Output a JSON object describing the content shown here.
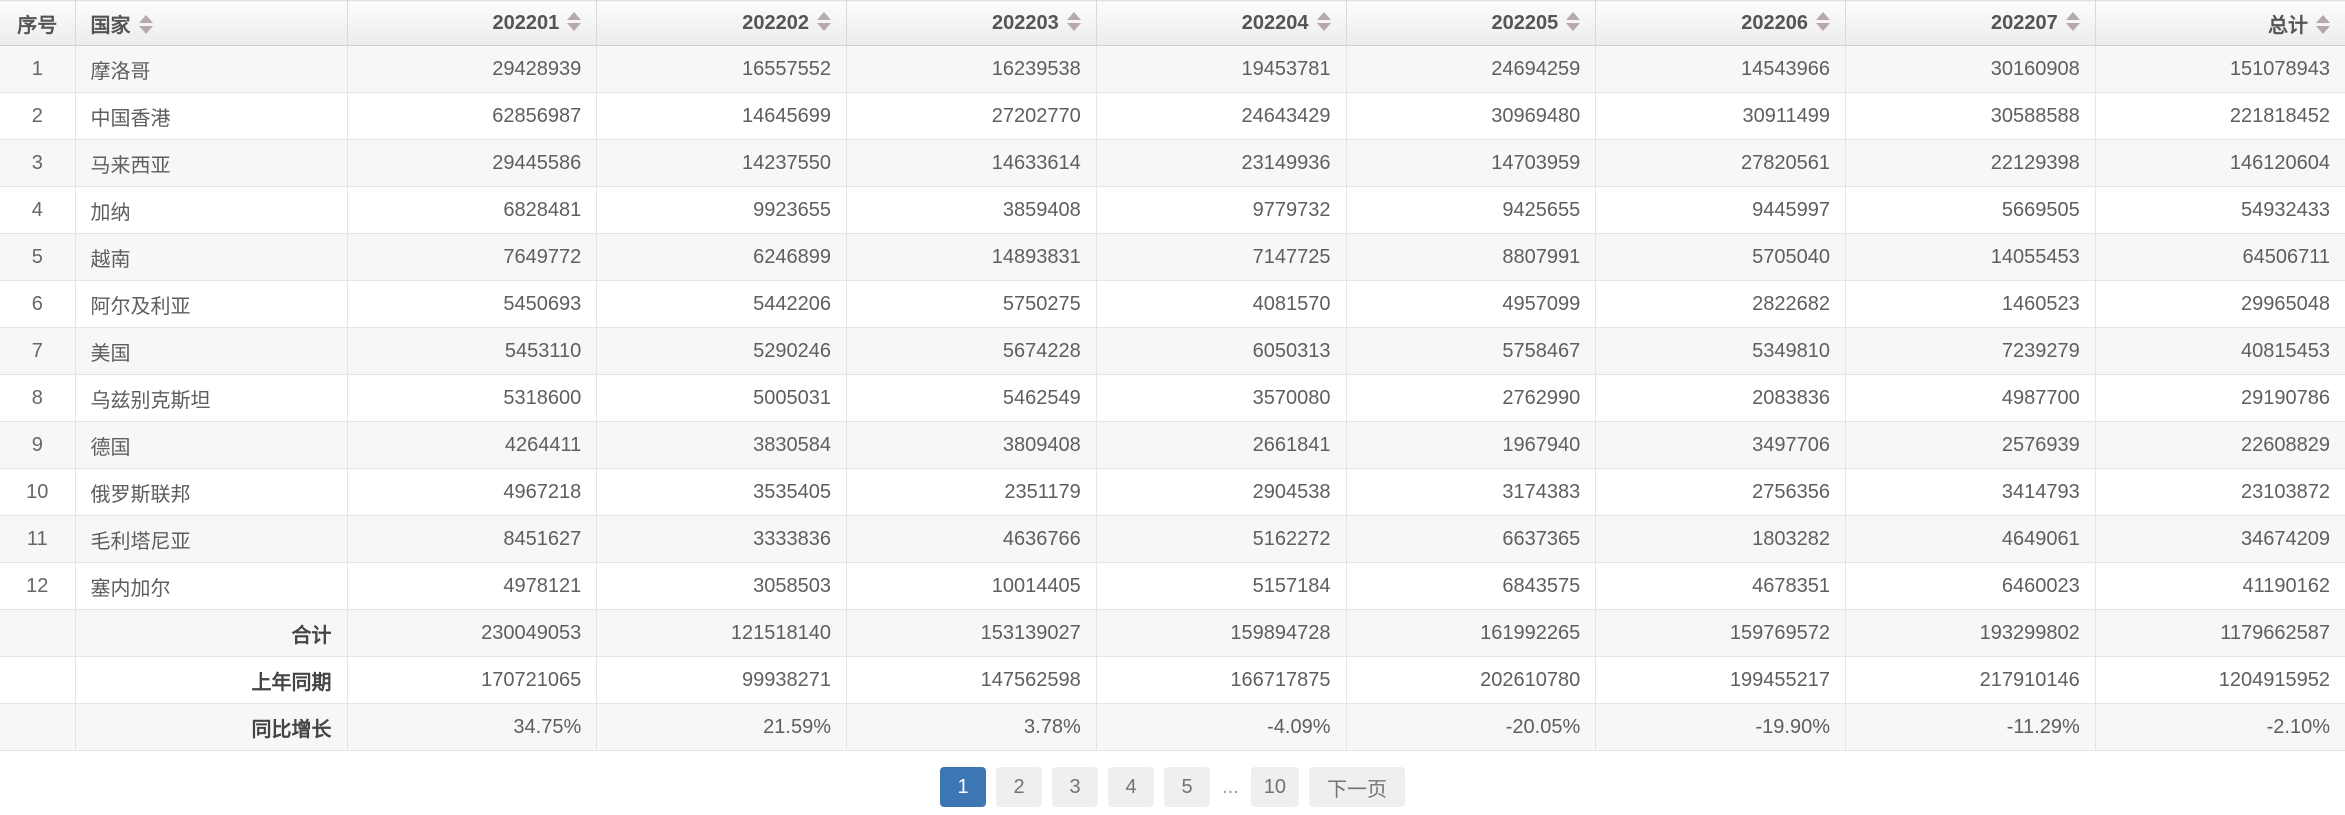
{
  "table": {
    "columns": [
      {
        "key": "index",
        "label": "序号",
        "sortable": false
      },
      {
        "key": "country",
        "label": "国家",
        "sortable": true
      },
      {
        "key": "202201",
        "label": "202201",
        "sortable": true
      },
      {
        "key": "202202",
        "label": "202202",
        "sortable": true
      },
      {
        "key": "202203",
        "label": "202203",
        "sortable": true
      },
      {
        "key": "202204",
        "label": "202204",
        "sortable": true
      },
      {
        "key": "202205",
        "label": "202205",
        "sortable": true
      },
      {
        "key": "202206",
        "label": "202206",
        "sortable": true
      },
      {
        "key": "202207",
        "label": "202207",
        "sortable": true
      },
      {
        "key": "total",
        "label": "总计",
        "sortable": true
      }
    ],
    "rows": [
      {
        "index": "1",
        "country": "摩洛哥",
        "values": [
          "29428939",
          "16557552",
          "16239538",
          "19453781",
          "24694259",
          "14543966",
          "30160908",
          "151078943"
        ]
      },
      {
        "index": "2",
        "country": "中国香港",
        "values": [
          "62856987",
          "14645699",
          "27202770",
          "24643429",
          "30969480",
          "30911499",
          "30588588",
          "221818452"
        ]
      },
      {
        "index": "3",
        "country": "马来西亚",
        "values": [
          "29445586",
          "14237550",
          "14633614",
          "23149936",
          "14703959",
          "27820561",
          "22129398",
          "146120604"
        ]
      },
      {
        "index": "4",
        "country": "加纳",
        "values": [
          "6828481",
          "9923655",
          "3859408",
          "9779732",
          "9425655",
          "9445997",
          "5669505",
          "54932433"
        ]
      },
      {
        "index": "5",
        "country": "越南",
        "values": [
          "7649772",
          "6246899",
          "14893831",
          "7147725",
          "8807991",
          "5705040",
          "14055453",
          "64506711"
        ]
      },
      {
        "index": "6",
        "country": "阿尔及利亚",
        "values": [
          "5450693",
          "5442206",
          "5750275",
          "4081570",
          "4957099",
          "2822682",
          "1460523",
          "29965048"
        ]
      },
      {
        "index": "7",
        "country": "美国",
        "values": [
          "5453110",
          "5290246",
          "5674228",
          "6050313",
          "5758467",
          "5349810",
          "7239279",
          "40815453"
        ]
      },
      {
        "index": "8",
        "country": "乌兹别克斯坦",
        "values": [
          "5318600",
          "5005031",
          "5462549",
          "3570080",
          "2762990",
          "2083836",
          "4987700",
          "29190786"
        ]
      },
      {
        "index": "9",
        "country": "德国",
        "values": [
          "4264411",
          "3830584",
          "3809408",
          "2661841",
          "1967940",
          "3497706",
          "2576939",
          "22608829"
        ]
      },
      {
        "index": "10",
        "country": "俄罗斯联邦",
        "values": [
          "4967218",
          "3535405",
          "2351179",
          "2904538",
          "3174383",
          "2756356",
          "3414793",
          "23103872"
        ]
      },
      {
        "index": "11",
        "country": "毛利塔尼亚",
        "values": [
          "8451627",
          "3333836",
          "4636766",
          "5162272",
          "6637365",
          "1803282",
          "4649061",
          "34674209"
        ]
      },
      {
        "index": "12",
        "country": "塞内加尔",
        "values": [
          "4978121",
          "3058503",
          "10014405",
          "5157184",
          "6843575",
          "4678351",
          "6460023",
          "41190162"
        ]
      }
    ],
    "summary_rows": [
      {
        "label": "合计",
        "values": [
          "230049053",
          "121518140",
          "153139027",
          "159894728",
          "161992265",
          "159769572",
          "193299802",
          "1179662587"
        ]
      },
      {
        "label": "上年同期",
        "values": [
          "170721065",
          "99938271",
          "147562598",
          "166717875",
          "202610780",
          "199455217",
          "217910146",
          "1204915952"
        ]
      },
      {
        "label": "同比增长",
        "values": [
          "34.75%",
          "21.59%",
          "3.78%",
          "-4.09%",
          "-20.05%",
          "-19.90%",
          "-11.29%",
          "-2.10%"
        ]
      }
    ]
  },
  "pagination": {
    "items": [
      {
        "label": "1",
        "type": "page",
        "active": true
      },
      {
        "label": "2",
        "type": "page"
      },
      {
        "label": "3",
        "type": "page"
      },
      {
        "label": "4",
        "type": "page"
      },
      {
        "label": "5",
        "type": "page"
      },
      {
        "label": "...",
        "type": "ellipsis"
      },
      {
        "label": "10",
        "type": "page"
      },
      {
        "label": "下一页",
        "type": "next"
      }
    ]
  },
  "colors": {
    "active_page_bg": "#3c76b3",
    "active_page_text": "#ffffff",
    "page_btn_bg": "#efefef",
    "header_text": "#555555",
    "sort_arrow": "#b7a8b0",
    "row_stripe": "#f7f7f7",
    "cell_border": "#e5e5e5",
    "body_text": "#5e5e5e"
  }
}
